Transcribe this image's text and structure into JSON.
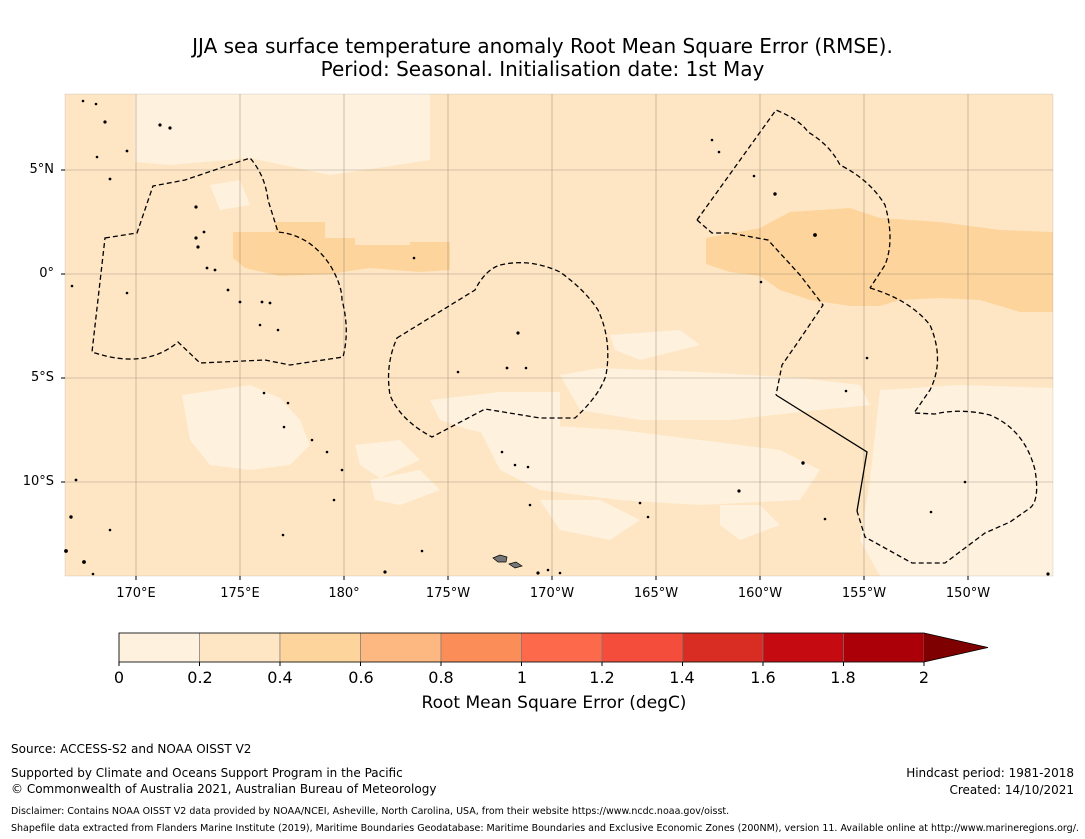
{
  "title": {
    "line1": "JJA sea surface temperature anomaly Root Mean Square Error (RMSE).",
    "line2": "Period: Seasonal. Initialisation date: 1st May"
  },
  "map": {
    "lat_labels": [
      "5°N",
      "0°",
      "5°S",
      "10°S"
    ],
    "lon_labels": [
      "170°E",
      "175°E",
      "180°",
      "175°W",
      "170°W",
      "165°W",
      "160°W",
      "155°W",
      "150°W"
    ],
    "regions_rmse_degC": {
      "equatorial_band_0.4_to_0.6": "0.4–0.6",
      "background_0.2_to_0.4": "0.2–0.4",
      "southern_patches_0_to_0.2": "0–0.2"
    }
  },
  "colorbar": {
    "label": "Root Mean Square Error (degC)",
    "ticks": [
      "0",
      "0.2",
      "0.4",
      "0.6",
      "0.8",
      "1",
      "1.2",
      "1.4",
      "1.6",
      "1.8",
      "2"
    ],
    "bins": [
      {
        "from": 0.0,
        "to": 0.2,
        "color": "#fef1de"
      },
      {
        "from": 0.2,
        "to": 0.4,
        "color": "#fee6c4"
      },
      {
        "from": 0.4,
        "to": 0.6,
        "color": "#fdd49b"
      },
      {
        "from": 0.6,
        "to": 0.8,
        "color": "#fcb880"
      },
      {
        "from": 0.8,
        "to": 1.0,
        "color": "#fb8d59"
      },
      {
        "from": 1.0,
        "to": 1.2,
        "color": "#fc6a4b"
      },
      {
        "from": 1.2,
        "to": 1.4,
        "color": "#f44d3c"
      },
      {
        "from": 1.4,
        "to": 1.6,
        "color": "#d92d23"
      },
      {
        "from": 1.6,
        "to": 1.8,
        "color": "#c60a12"
      },
      {
        "from": 1.8,
        "to": 2.0,
        "color": "#ab0007"
      }
    ],
    "extend_color": "#7f0000"
  },
  "colors": {
    "c0": "#fef1de",
    "c1": "#fee6c4",
    "c2": "#fdd49b",
    "grid": "#8a7a6a"
  },
  "footer": {
    "source": "Source: ACCESS-S2 and NOAA OISST V2",
    "supported": "Supported by Climate and Oceans Support Program in the Pacific",
    "copyright": "© Commonwealth of Australia 2021, Australian Bureau of Meteorology",
    "hindcast": "Hindcast period: 1981-2018",
    "created": "Created: 14/10/2021",
    "disclaimer": "Disclaimer: Contains NOAA OISST V2 data provided by NOAA/NCEI, Asheville, North Carolina, USA, from their website https://www.ncdc.noaa.gov/oisst.",
    "shapefile": "Shapefile data extracted from Flanders Marine Institute (2019), Maritime Boundaries Geodatabase: Maritime Boundaries and Exclusive Economic Zones (200NM), version 11. Available online at http://www.marineregions.org/."
  }
}
